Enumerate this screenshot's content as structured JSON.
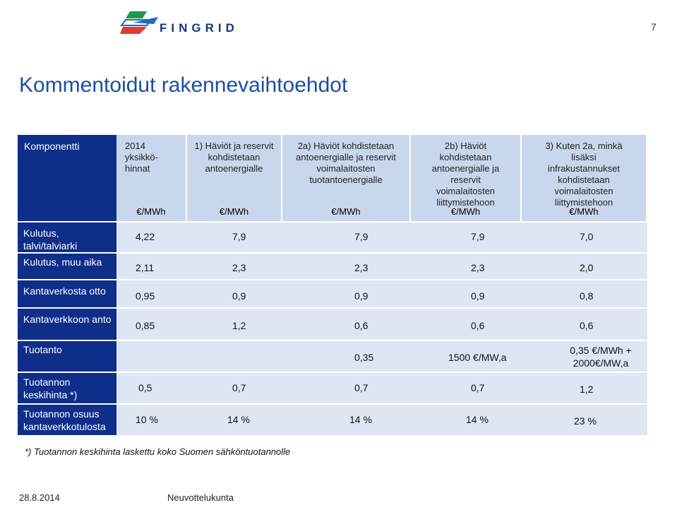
{
  "header": {
    "logo_text": "FINGRID",
    "page_number": "7"
  },
  "title": "Kommentoidut rakennevaihtoehdot",
  "table": {
    "columns": [
      {
        "label": "Komponentti",
        "unit": ""
      },
      {
        "label": "2014 yksikkö-hinnat",
        "unit": "€/MWh"
      },
      {
        "label": "1) Häviöt ja reservit kohdistetaan antoenergialle",
        "unit": "€/MWh"
      },
      {
        "label": "2a) Häviöt kohdistetaan antoenergialle ja reservit voimalaitosten tuotantoenergialle",
        "unit": "€/MWh"
      },
      {
        "label": "2b) Häviöt kohdistetaan antoenergialle ja reservit voimalaitosten liittymistehoon",
        "unit": "€/MWh"
      },
      {
        "label": "3) Kuten 2a, minkä lisäksi infrakustannukset kohdistetaan voimalaitosten liittymistehoon",
        "unit": "€/MWh"
      }
    ],
    "rows": [
      {
        "label": "Kulutus, talvi/talviarki",
        "values": [
          "4,22",
          "7,9",
          "7,9",
          "7,9",
          "7,0"
        ]
      },
      {
        "label": "Kulutus, muu aika",
        "values": [
          "2,11",
          "2,3",
          "2,3",
          "2,3",
          "2,0"
        ]
      },
      {
        "label": "Kantaverkosta otto",
        "values": [
          "0,95",
          "0,9",
          "0,9",
          "0,9",
          "0,8"
        ]
      },
      {
        "label": "Kantaverkkoon anto",
        "values": [
          "0,85",
          "1,2",
          "0,6",
          "0,6",
          "0,6"
        ]
      },
      {
        "label": "Tuotanto",
        "values": [
          "",
          "",
          "0,35",
          "1500 €/MW,a",
          "0,35 €/MWh + 2000€/MW,a"
        ]
      },
      {
        "label": "Tuotannon keskihinta *)",
        "values": [
          "0,5",
          "0,7",
          "0,7",
          "0,7",
          "1,2"
        ]
      },
      {
        "label": "Tuotannon osuus kantaverkkotulosta",
        "values": [
          "10 %",
          "14 %",
          "14 %",
          "14 %",
          "23 %"
        ]
      }
    ]
  },
  "footnote": "*) Tuotannon keskihinta laskettu koko Suomen sähköntuotannolle",
  "footer": {
    "date": "28.8.2014",
    "label": "Neuvottelukunta"
  },
  "colors": {
    "title": "#1a4fa3",
    "row_header_bg": "#0e2e8a",
    "header_bg": "#c9d7ed",
    "value_bg": "#dfe6f3"
  }
}
